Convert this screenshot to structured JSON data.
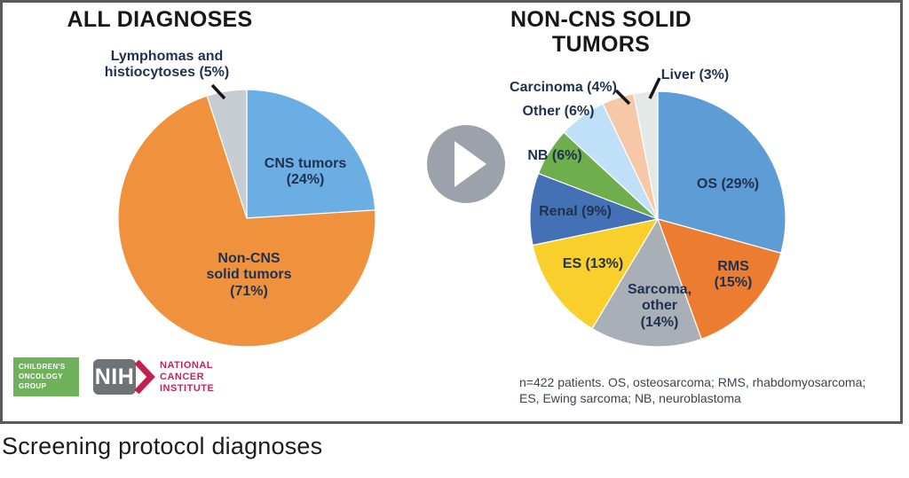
{
  "caption": "Screening protocol diagnoses",
  "play_overlay": {
    "icon": "play-icon"
  },
  "chart_data": [
    {
      "type": "pie",
      "title": "ALL DIAGNOSES",
      "start_angle_deg": 0,
      "direction": "clockwise",
      "unit": "percent",
      "slices": [
        {
          "category": "CNS tumors",
          "value": 24,
          "color": "#6BAEE3",
          "label": "CNS tumors\n(24%)"
        },
        {
          "category": "Non-CNS solid tumors",
          "value": 71,
          "color": "#F0923D",
          "label": "Non-CNS\nsolid tumors\n(71%)"
        },
        {
          "category": "Lymphomas and histiocytoses",
          "value": 5,
          "color": "#C7CCD1",
          "label": "Lymphomas and\nhistiocytoses (5%)"
        }
      ]
    },
    {
      "type": "pie",
      "title": "NON-CNS SOLID TUMORS",
      "start_angle_deg": 0,
      "direction": "clockwise",
      "unit": "percent",
      "note": "n=422 patients. OS, osteosarcoma; RMS, rhabdomyosarcoma;\nES, Ewing sarcoma; NB, neuroblastoma",
      "slices": [
        {
          "category": "OS",
          "value": 29,
          "color": "#5E9CD6",
          "label": "OS (29%)"
        },
        {
          "category": "RMS",
          "value": 15,
          "color": "#EC7C30",
          "label": "RMS\n(15%)"
        },
        {
          "category": "Sarcoma, other",
          "value": 14,
          "color": "#A8AFB6",
          "label": "Sarcoma,\nother\n(14%)"
        },
        {
          "category": "ES",
          "value": 13,
          "color": "#F9CF2B",
          "label": "ES (13%)"
        },
        {
          "category": "Renal",
          "value": 9,
          "color": "#4470B5",
          "label": "Renal (9%)"
        },
        {
          "category": "NB",
          "value": 6,
          "color": "#6FAE4C",
          "label": "NB (6%)"
        },
        {
          "category": "Other",
          "value": 6,
          "color": "#BFE0F6",
          "label": "Other (6%)"
        },
        {
          "category": "Carcinoma",
          "value": 4,
          "color": "#F7C8A8",
          "label": "Carcinoma (4%)"
        },
        {
          "category": "Liver",
          "value": 3,
          "color": "#E2E9E6",
          "label": "Liver (3%)"
        }
      ]
    }
  ],
  "logos": {
    "cog": {
      "lines": [
        "CHILDREN'S",
        "ONCOLOGY",
        "GROUP"
      ],
      "bg_color": "#70B15C"
    },
    "nih": {
      "text": "NIH",
      "bg_color": "#6F7378",
      "arrow_color": "#C41F4D"
    },
    "nci": {
      "lines": [
        "NATIONAL",
        "CANCER",
        "INSTITUTE"
      ],
      "color": "#C62458"
    }
  }
}
